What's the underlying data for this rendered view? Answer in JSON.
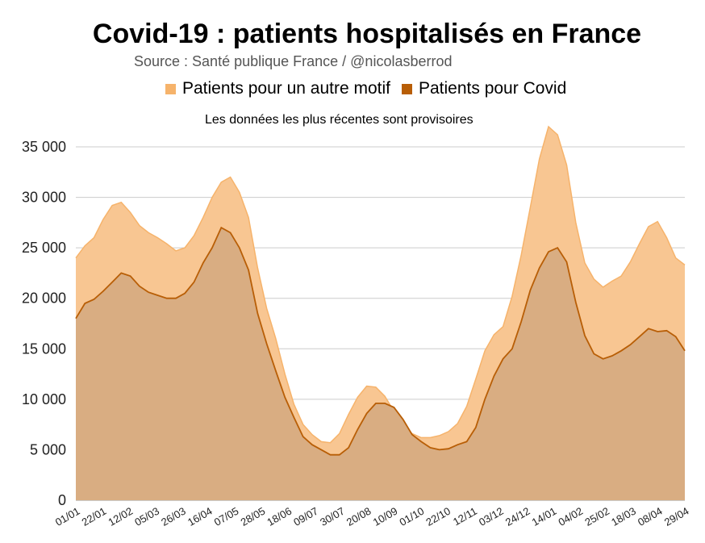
{
  "title": "Covid-19 : patients hospitalisés en France",
  "source": "Source : Santé publique France / @nicolasberrod",
  "note": "Les données les plus récentes sont provisoires",
  "colors": {
    "other": "#f6b36b",
    "covid": "#b85e06",
    "other_fill": "#f8c692",
    "covid_fill": "#d9ad82"
  },
  "chart_data": {
    "type": "area",
    "title": "Covid-19 : patients hospitalisés en France",
    "ylim": [
      0,
      37500
    ],
    "yticks": [
      0,
      5000,
      10000,
      15000,
      20000,
      25000,
      30000,
      35000
    ],
    "ytick_labels": [
      "0",
      "5 000",
      "10 000",
      "15 000",
      "20 000",
      "25 000",
      "30 000",
      "35 000"
    ],
    "xtick_labels": [
      "01/01",
      "22/01",
      "12/02",
      "05/03",
      "26/03",
      "16/04",
      "07/05",
      "28/05",
      "18/06",
      "09/07",
      "30/07",
      "20/08",
      "10/09",
      "01/10",
      "22/10",
      "12/11",
      "03/12",
      "24/12",
      "14/01",
      "04/02",
      "25/02",
      "18/03",
      "08/04",
      "29/04"
    ],
    "stacked": true,
    "grid": true,
    "legend_position": "top",
    "series": [
      {
        "name": "Patients pour un autre motif",
        "total": [
          24000,
          25200,
          26000,
          27800,
          29200,
          29500,
          28500,
          27200,
          26500,
          26000,
          25400,
          24700,
          25000,
          26200,
          28000,
          30000,
          31500,
          32000,
          30500,
          28000,
          23000,
          19000,
          16000,
          12500,
          9500,
          7500,
          6500,
          5800,
          5700,
          6600,
          8500,
          10200,
          11300,
          11200,
          10300,
          8800,
          7400,
          6600,
          6200,
          6200,
          6400,
          6800,
          7600,
          9300,
          12000,
          14800,
          16400,
          17200,
          20200,
          24300,
          29000,
          33800,
          37000,
          36200,
          33200,
          27500,
          23500,
          21900,
          21100,
          21700,
          22200,
          23600,
          25400,
          27100,
          27600,
          26000,
          24000,
          23300
        ]
      },
      {
        "name": "Patients pour Covid",
        "values": [
          18000,
          19500,
          19900,
          20700,
          21600,
          22500,
          22200,
          21200,
          20600,
          20300,
          20000,
          20000,
          20500,
          21600,
          23500,
          25000,
          27000,
          26500,
          25000,
          22800,
          18500,
          15500,
          12800,
          10200,
          8200,
          6300,
          5500,
          5000,
          4500,
          4500,
          5200,
          7000,
          8600,
          9600,
          9600,
          9200,
          8000,
          6500,
          5800,
          5200,
          5000,
          5100,
          5500,
          5800,
          7200,
          10000,
          12300,
          14000,
          15000,
          17700,
          20800,
          23000,
          24600,
          25000,
          23600,
          19600,
          16300,
          14500,
          14000,
          14300,
          14800,
          15400,
          16200,
          17000,
          16700,
          16800,
          16200,
          14800
        ]
      }
    ]
  }
}
